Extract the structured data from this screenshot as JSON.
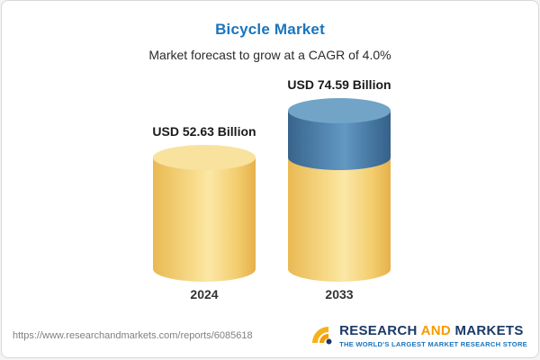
{
  "header": {
    "title": "Bicycle Market",
    "subtitle": "Market forecast to grow at a CAGR of 4.0%"
  },
  "chart_data": {
    "type": "bar",
    "variant": "3d-cylinder",
    "title": "Bicycle Market",
    "subtitle": "Market forecast to grow at a CAGR of 4.0%",
    "categories": [
      "2024",
      "2033"
    ],
    "values": [
      52.63,
      74.59
    ],
    "value_labels": [
      "USD 52.63 Billion",
      "USD 74.59 Billion"
    ],
    "unit": "USD Billion",
    "cagr_percent": 4.0,
    "legend_position": "none",
    "grid": false,
    "colors": {
      "base_bar": "#F3CD6E",
      "growth_segment": "#5A8FBA"
    },
    "notes": "2033 bar shows base value in yellow with growth delta (74.59 - 52.63) as blue top segment"
  },
  "footer": {
    "url": "https://www.researchandmarkets.com/reports/6085618",
    "logo": {
      "part1": "RESEARCH",
      "part2": "AND",
      "part3": "MARKETS",
      "tagline": "THE WORLD'S LARGEST MARKET RESEARCH STORE"
    }
  }
}
